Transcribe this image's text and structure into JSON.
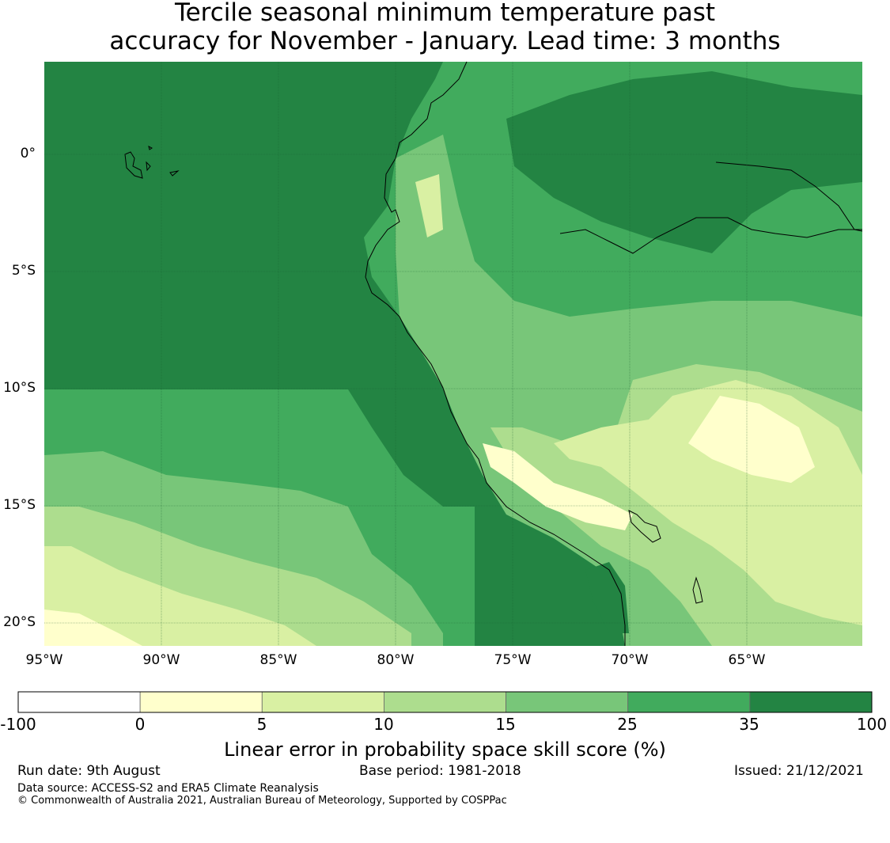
{
  "title_line1": "Tercile seasonal minimum temperature past",
  "title_line2": "accuracy for November - January. Lead time: 3 months",
  "lat_labels": [
    "0°",
    "5°S",
    "10°S",
    "15°S",
    "20°S"
  ],
  "lon_labels": [
    "95°W",
    "90°W",
    "85°W",
    "80°W",
    "75°W",
    "70°W",
    "65°W"
  ],
  "colorbar": {
    "ticks": [
      "-100",
      "0",
      "5",
      "10",
      "15",
      "25",
      "35",
      "100"
    ],
    "colors": [
      "#ffffff",
      "#ffffcc",
      "#d9f0a3",
      "#addd8e",
      "#78c679",
      "#41ab5d",
      "#238443"
    ],
    "label": "Linear error in probability space skill score (%)"
  },
  "footer": {
    "run_date": "Run date: 9th August",
    "base_period": "Base period: 1981-2018",
    "issued": "Issued: 21/12/2021",
    "data_source": "Data source: ACCESS-S2 and ERA5 Climate Reanalysis",
    "copyright": "© Commonwealth of Australia 2021, Australian Bureau of Meteorology, Supported by COSPPac"
  },
  "map": {
    "ocean_color": "#238443",
    "land_color": "#41ab5d",
    "coast_color": "#000000",
    "gridline_color": "#1a5e30"
  }
}
